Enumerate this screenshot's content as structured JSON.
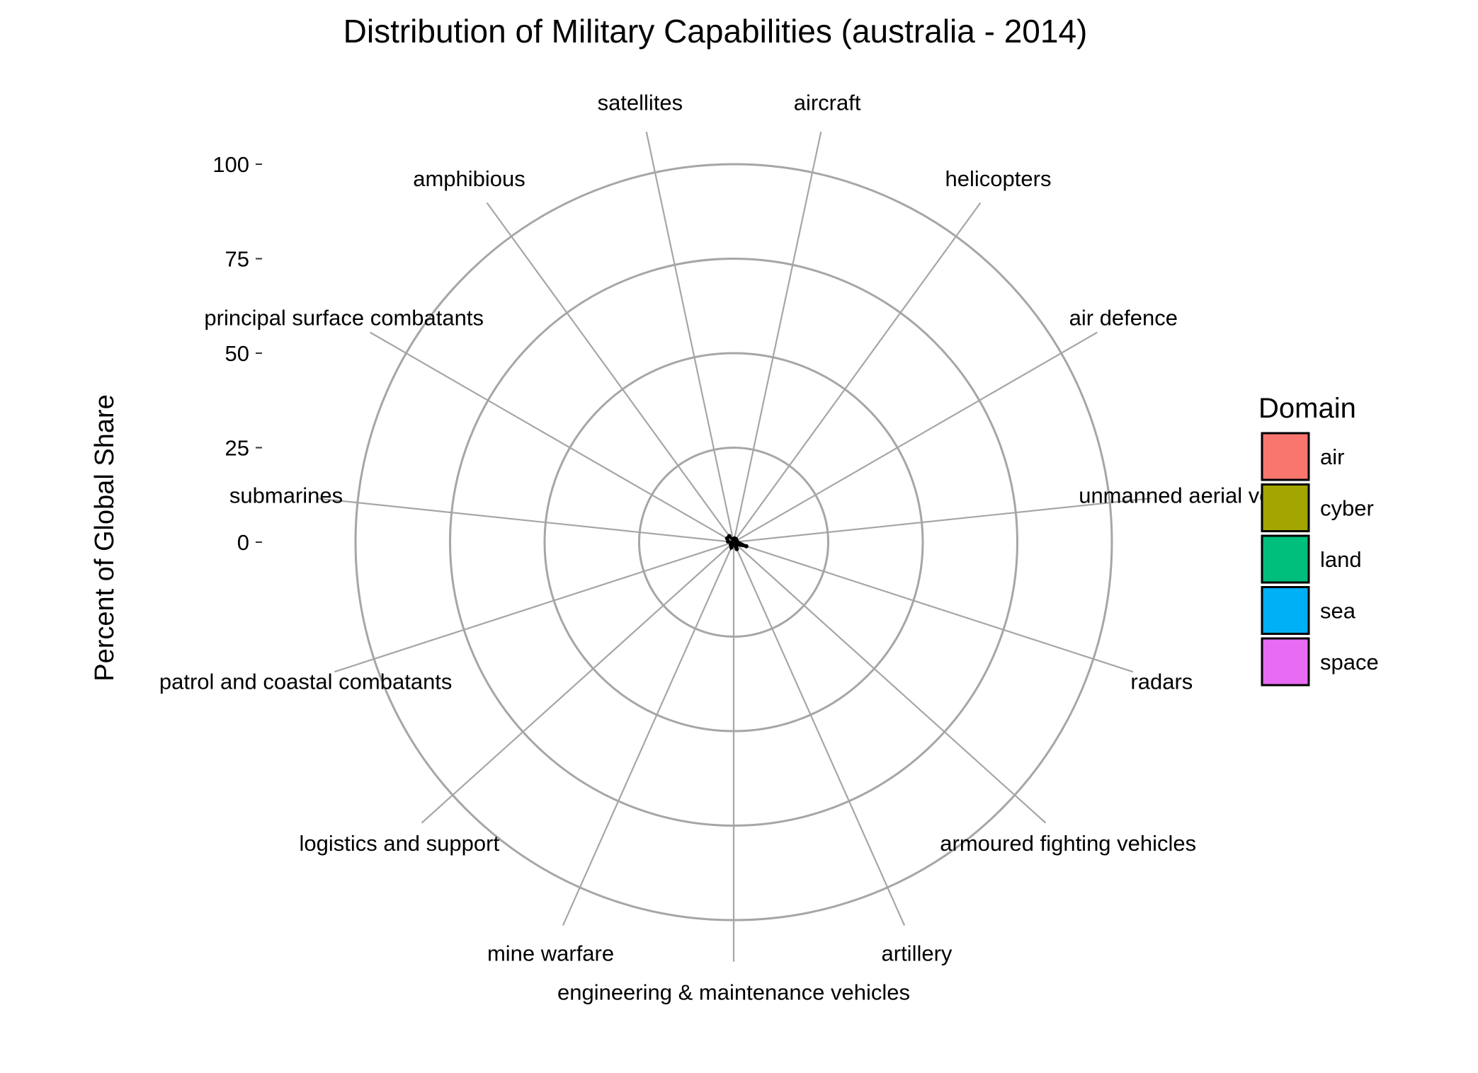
{
  "chart_data": {
    "type": "radar",
    "title": "Distribution of Military Capabilities (australia - 2014)",
    "ylabel": "Percent of Global Share",
    "ylim": [
      0,
      100
    ],
    "yticks": [
      0,
      25,
      50,
      75,
      100
    ],
    "grid": true,
    "legend_position": "right",
    "legend_title": "Domain",
    "legend": [
      {
        "label": "air",
        "color": "#F8766D"
      },
      {
        "label": "cyber",
        "color": "#A3A500"
      },
      {
        "label": "land",
        "color": "#00BF7D"
      },
      {
        "label": "sea",
        "color": "#00B0F6"
      },
      {
        "label": "space",
        "color": "#E76BF3"
      }
    ],
    "categories": [
      "aircraft",
      "helicopters",
      "air defence",
      "unmanned aerial vehicles",
      "radars",
      "armoured fighting vehicles",
      "artillery",
      "engineering & maintenance vehicles",
      "mine warfare",
      "logistics and support",
      "patrol and coastal combatants",
      "submarines",
      "principal surface combatants",
      "amphibious",
      "satellites"
    ],
    "category_display": [
      "aircraft",
      "helicopters",
      "air defence",
      "unmanned aerial veh",
      "radars",
      "armoured fighting vehicles",
      "artillery",
      "engineering & maintenance vehicles",
      "mine warfare",
      "logistics and support",
      "patrol and coastal combatants",
      "submarines",
      "principal surface combatants",
      "amphibious",
      "satellites"
    ],
    "series": [
      {
        "values": [
          1.0,
          1.0,
          0.5,
          1.0,
          3.5,
          1.0,
          2.0,
          0.5,
          1.5,
          1.0,
          0.5,
          1.5,
          2.0,
          2.0,
          0.5
        ]
      }
    ]
  }
}
